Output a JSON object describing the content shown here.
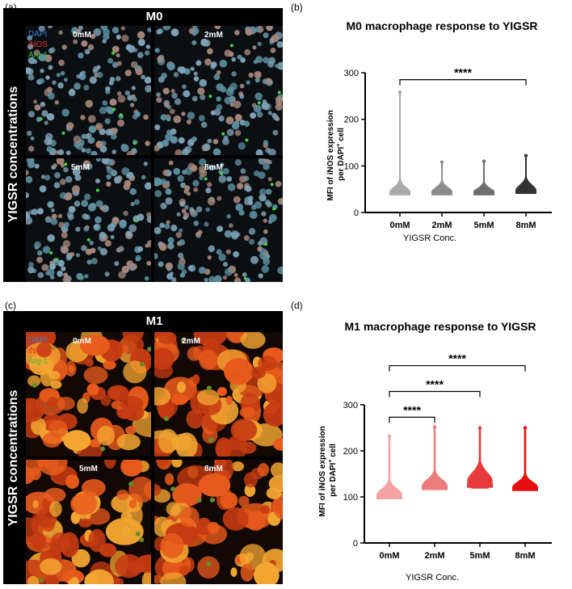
{
  "panels": {
    "a": {
      "label": "(a)"
    },
    "b": {
      "label": "(b)"
    },
    "c": {
      "label": "(c)"
    },
    "d": {
      "label": "(d)"
    }
  },
  "micrographs": [
    {
      "title": "M0",
      "side_label": "YIGSR concentrations",
      "legend": [
        {
          "text": "DAPI",
          "color": "#3a7bd5"
        },
        {
          "text": "iNOS",
          "color": "#e0302a"
        },
        {
          "text": "Arg-1",
          "color": "#3fbf3f"
        }
      ],
      "tiles": [
        "0mM",
        "2mM",
        "5mM",
        "8mM"
      ],
      "theme": {
        "bg": "#0c0f12",
        "cell_a": "#7fa3b8",
        "cell_b": "#a5867a",
        "cell_c": "#5c8fa0",
        "accent": "#3fd24a"
      }
    },
    {
      "title": "M1",
      "side_label": "YIGSR concentrations",
      "legend": [
        {
          "text": "DAPI",
          "color": "#3a7bd5"
        },
        {
          "text": "iNOS",
          "color": "#e0302a"
        },
        {
          "text": "Arg-1",
          "color": "#3fbf3f"
        }
      ],
      "tiles": [
        "0mM",
        "2mM",
        "5mM",
        "8mM"
      ],
      "theme": {
        "bg": "#120805",
        "cell_a": "#e85a1c",
        "cell_b": "#f3a531",
        "cell_c": "#c63b12",
        "accent": "#6a8a2a"
      }
    }
  ],
  "chart_data": [
    {
      "type": "violin-scatter",
      "title": "M0 macrophage response to YIGSR",
      "xlabel": "YIGSR Conc.",
      "ylabel_line1": "MFI of iNOS expression",
      "ylabel_line2": "per DAPI",
      "ylabel_sup": "+",
      "ylabel_tail": " cell",
      "ylim": [
        0,
        300
      ],
      "yticks": [
        0,
        100,
        200,
        300
      ],
      "categories": [
        "0mM",
        "2mM",
        "5mM",
        "8mM"
      ],
      "series": [
        {
          "category": "0mM",
          "color": "#a9a9a9",
          "min": 40,
          "base": 42,
          "median": 45,
          "max": 258
        },
        {
          "category": "2mM",
          "color": "#8c8c8c",
          "min": 40,
          "base": 42,
          "median": 45,
          "max": 108
        },
        {
          "category": "5mM",
          "color": "#6e6e6e",
          "min": 40,
          "base": 42,
          "median": 44,
          "max": 110
        },
        {
          "category": "8mM",
          "color": "#333333",
          "min": 40,
          "base": 45,
          "median": 48,
          "max": 122
        }
      ],
      "significance": [
        {
          "from": "0mM",
          "to": "8mM",
          "label": "****",
          "y": 285
        }
      ]
    },
    {
      "type": "violin-scatter",
      "title": "M1 macrophage response to YIGSR",
      "xlabel": "YIGSR Conc.",
      "ylabel_line1": "MFI of iNOS expression",
      "ylabel_line2": "per DAPI",
      "ylabel_sup": "+",
      "ylabel_tail": " cell",
      "ylim": [
        0,
        300
      ],
      "yticks": [
        0,
        100,
        200,
        300
      ],
      "categories": [
        "0mM",
        "2mM",
        "5mM",
        "8mM"
      ],
      "series": [
        {
          "category": "0mM",
          "color": "#f4a3a3",
          "min": 95,
          "base": 100,
          "median": 105,
          "max": 232
        },
        {
          "category": "2mM",
          "color": "#ee7b7b",
          "min": 115,
          "base": 120,
          "median": 125,
          "max": 252
        },
        {
          "category": "5mM",
          "color": "#e83a3a",
          "min": 118,
          "base": 125,
          "median": 135,
          "max": 250
        },
        {
          "category": "8mM",
          "color": "#e50f0f",
          "min": 115,
          "base": 118,
          "median": 122,
          "max": 250
        }
      ],
      "significance": [
        {
          "from": "0mM",
          "to": "2mM",
          "label": "****",
          "y": 273
        },
        {
          "from": "0mM",
          "to": "5mM",
          "label": "****",
          "y": 329
        },
        {
          "from": "0mM",
          "to": "8mM",
          "label": "****",
          "y": 385
        }
      ]
    }
  ]
}
